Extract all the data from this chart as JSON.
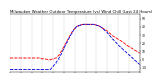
{
  "title": "Milwaukee Weather Outdoor Temperature (vs) Wind Chill (Last 24 Hours)",
  "title_fontsize": 2.8,
  "background_color": "#ffffff",
  "plot_bg_color": "#ffffff",
  "grid_color": "#888888",
  "ylim": [
    -15,
    55
  ],
  "xlim": [
    0,
    48
  ],
  "yticks": [
    -10,
    0,
    10,
    20,
    30,
    40,
    50
  ],
  "ytick_labels": [
    "-10",
    "0",
    "10",
    "20",
    "30",
    "40",
    "50"
  ],
  "vgrid_positions": [
    0,
    4,
    8,
    12,
    16,
    20,
    24,
    28,
    32,
    36,
    40,
    44,
    48
  ],
  "outdoor_temp_x": [
    0,
    1,
    2,
    3,
    4,
    5,
    6,
    7,
    8,
    9,
    10,
    11,
    12,
    13,
    14,
    15,
    16,
    17,
    18,
    19,
    20,
    21,
    22,
    23,
    24,
    25,
    26,
    27,
    28,
    29,
    30,
    31,
    32,
    33,
    34,
    35,
    36,
    37,
    38,
    39,
    40,
    41,
    42,
    43,
    44,
    45,
    46,
    47,
    48
  ],
  "outdoor_temp_y": [
    2,
    2,
    2,
    2,
    2,
    2,
    2,
    2,
    2,
    2,
    2,
    2,
    1,
    1,
    0,
    0,
    1,
    2,
    5,
    10,
    16,
    22,
    28,
    34,
    38,
    41,
    42,
    43,
    43,
    43,
    43,
    43,
    42,
    41,
    39,
    37,
    35,
    32,
    29,
    27,
    25,
    23,
    21,
    18,
    16,
    14,
    12,
    10,
    8
  ],
  "wind_chill_x": [
    0,
    1,
    2,
    3,
    4,
    5,
    6,
    7,
    8,
    9,
    10,
    11,
    12,
    13,
    14,
    15,
    16,
    17,
    18,
    19,
    20,
    21,
    22,
    23,
    24,
    25,
    26,
    27,
    28,
    29,
    30,
    31,
    32,
    33,
    34,
    35,
    36,
    37,
    38,
    39,
    40,
    41,
    42,
    43,
    44,
    45,
    46,
    47,
    48
  ],
  "wind_chill_y": [
    -12,
    -12,
    -12,
    -12,
    -12,
    -12,
    -12,
    -12,
    -12,
    -12,
    -12,
    -12,
    -12,
    -12,
    -12,
    -12,
    -8,
    -4,
    1,
    7,
    14,
    21,
    27,
    33,
    38,
    41,
    42,
    43,
    43,
    43,
    43,
    43,
    42,
    41,
    39,
    36,
    33,
    29,
    25,
    22,
    18,
    15,
    12,
    9,
    6,
    3,
    0,
    -3,
    -6
  ],
  "outdoor_color": "#ff0000",
  "wind_chill_color": "#0000dd",
  "line_style": "--",
  "linewidth": 0.6,
  "markersize": 0.6
}
